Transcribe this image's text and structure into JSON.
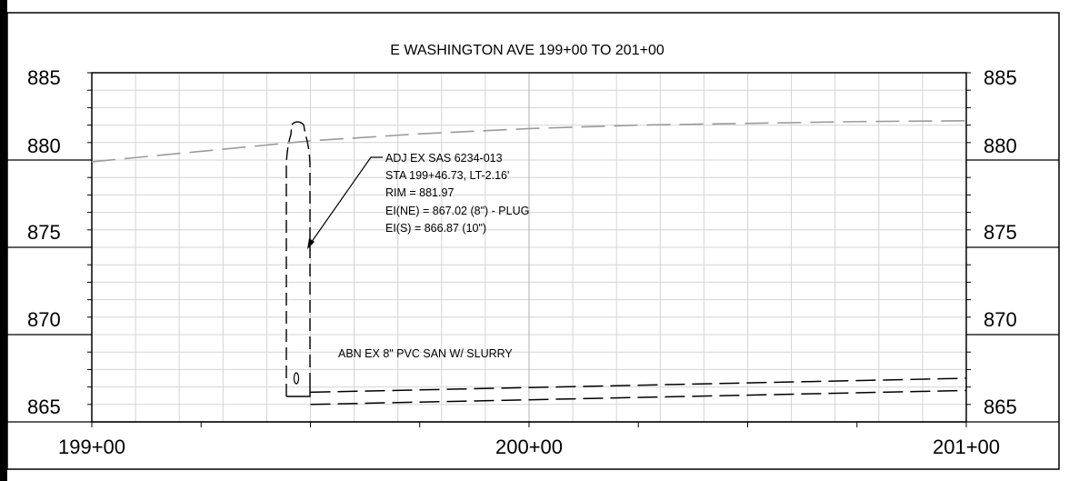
{
  "profile": {
    "title": "E WASHINGTON AVE 199+00 TO 201+00",
    "elevation_labels_left": [
      "885",
      "880",
      "875",
      "870",
      "865"
    ],
    "elevation_labels_right": [
      "885",
      "880",
      "875",
      "870",
      "865"
    ],
    "station_labels": [
      "199+00",
      "200+00",
      "201+00"
    ],
    "structure_note": {
      "lines": [
        "ADJ EX SAS 6234-013",
        "STA 199+46.73, LT-2.16'",
        "RIM = 881.97",
        "EI(NE) = 867.02 (8\") - PLUG",
        "EI(S) = 866.87 (10\")"
      ]
    },
    "pipe_note": "ABN EX 8\" PVC SAN W/ SLURRY",
    "colors": {
      "frame": "#000000",
      "grid": "#d4d4d4",
      "grid_major": "#b0b0b0",
      "ground": "#9a9a9a",
      "pipe": "#000000"
    }
  },
  "chart_data": {
    "type": "line",
    "title": "E WASHINGTON AVE 199+00 TO 201+00",
    "xlabel": "",
    "ylabel": "",
    "xlim": [
      "199+00",
      "201+00"
    ],
    "ylim": [
      865,
      885
    ],
    "grid": true,
    "x_ticks": [
      "199+00",
      "200+00",
      "201+00"
    ],
    "y_ticks": [
      865,
      870,
      875,
      880,
      885
    ],
    "series": [
      {
        "style": "gray dashed",
        "x": [
          "199+00",
          "199+25",
          "199+50",
          "199+75",
          "200+00",
          "200+25",
          "200+50",
          "200+75",
          "201+00"
        ],
        "y": [
          879.9,
          880.5,
          881.1,
          881.5,
          881.8,
          882.0,
          882.1,
          882.2,
          882.25
        ]
      },
      {
        "style": "black dashed",
        "x": [
          "199+50",
          "201+00"
        ],
        "y": [
          866.7,
          867.5
        ]
      },
      {
        "style": "black dashed",
        "x": [
          "199+50",
          "201+00"
        ],
        "y": [
          866.0,
          866.8
        ]
      }
    ],
    "annotations": [
      "ADJ EX SAS 6234-013",
      "STA 199+46.73, LT-2.16'",
      "RIM = 881.97",
      "EI(NE) = 867.02 (8\") - PLUG",
      "EI(S) = 866.87 (10\")",
      "ABN EX 8\" PVC SAN W/ SLURRY"
    ]
  }
}
